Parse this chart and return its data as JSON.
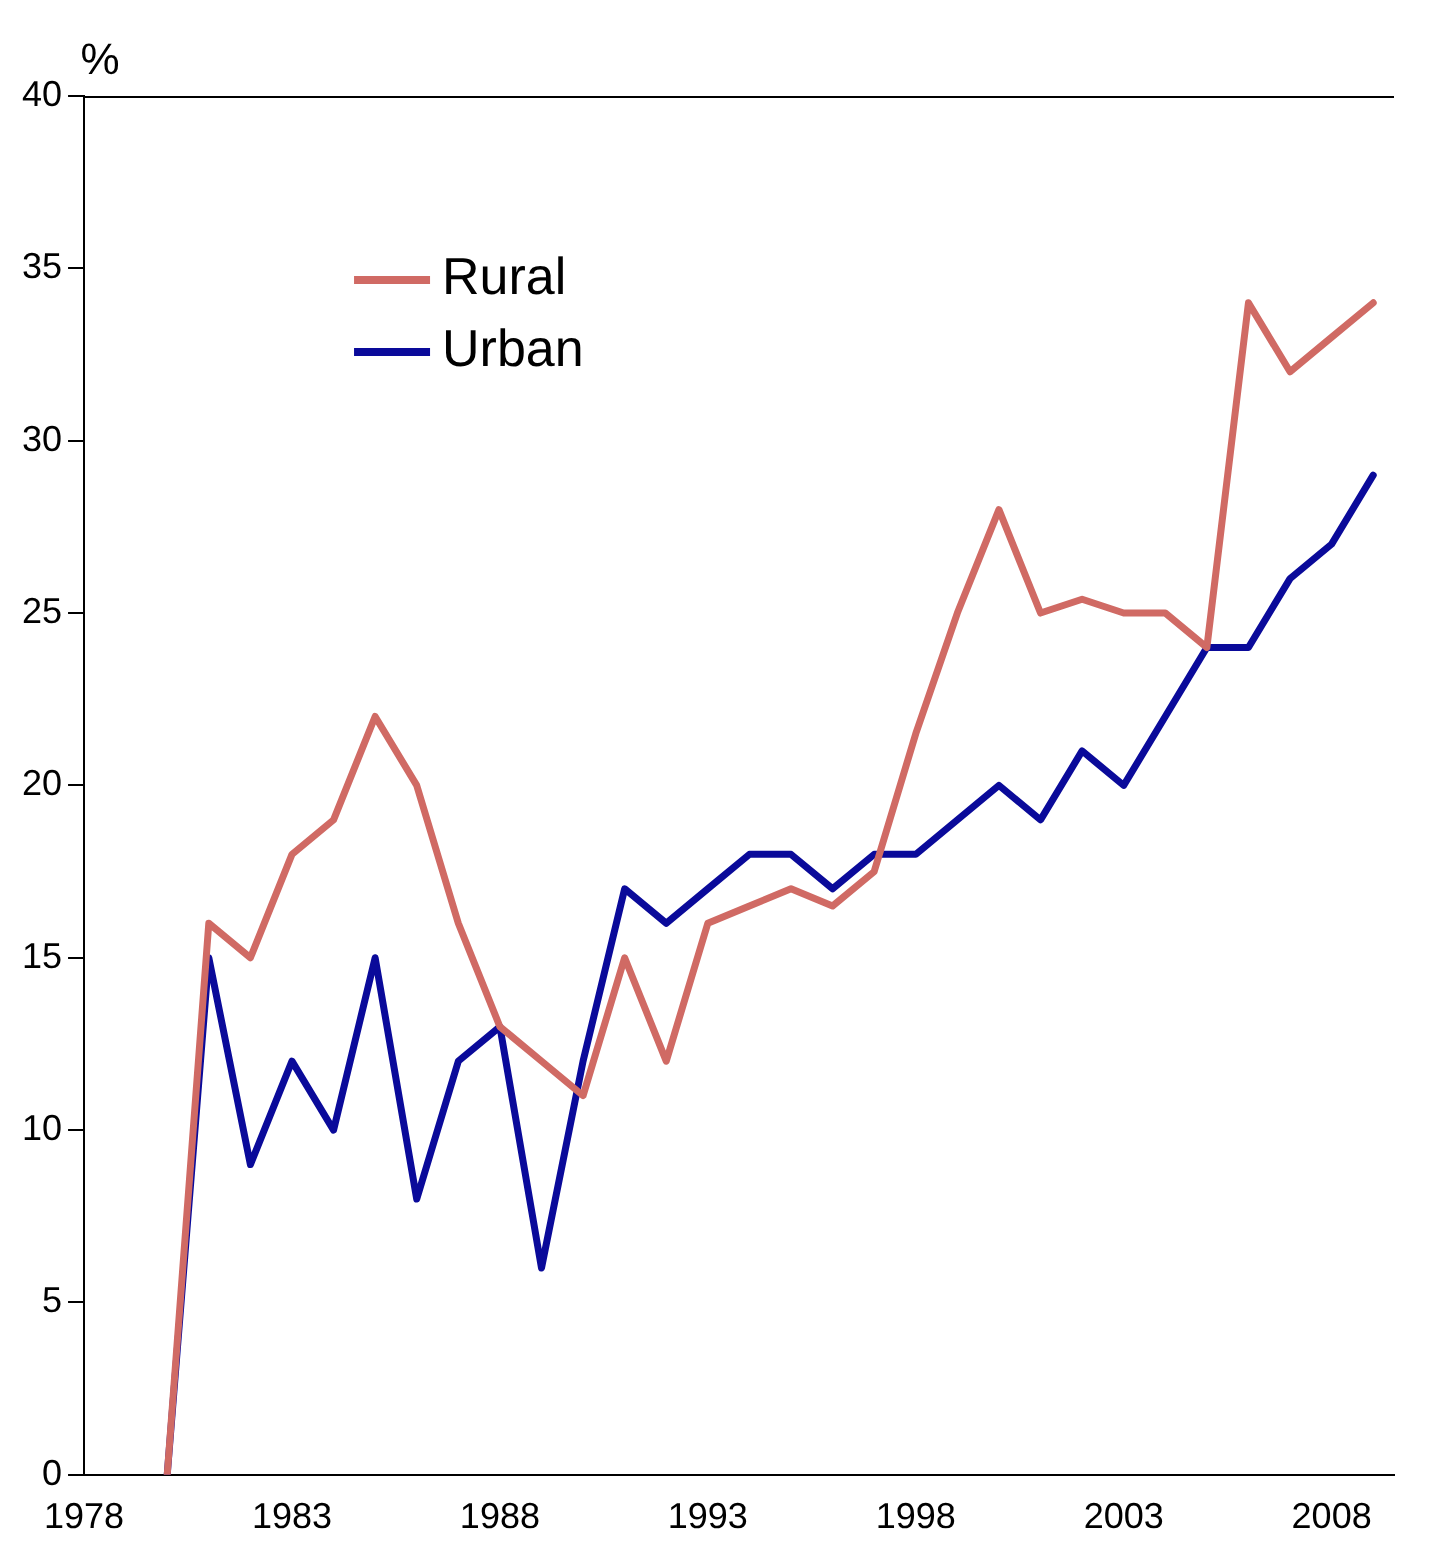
{
  "chart_data": {
    "type": "line",
    "ylabel": "%",
    "x": [
      1980,
      1981,
      1982,
      1983,
      1984,
      1985,
      1986,
      1987,
      1988,
      1989,
      1990,
      1991,
      1992,
      1993,
      1994,
      1995,
      1996,
      1997,
      1998,
      1999,
      2000,
      2001,
      2002,
      2003,
      2004,
      2005,
      2006,
      2007,
      2008,
      2009
    ],
    "series": [
      {
        "name": "Rural",
        "color": "#d06a64",
        "values": [
          0,
          16,
          15,
          18,
          19,
          22,
          20,
          16,
          13,
          12,
          11,
          15,
          12,
          16,
          16.5,
          17,
          16.5,
          17.5,
          21.5,
          25,
          28,
          25,
          25.4,
          25,
          25,
          24,
          34,
          32,
          33,
          34
        ]
      },
      {
        "name": "Urban",
        "color": "#0a0a9a",
        "values": [
          0,
          15,
          9,
          12,
          10,
          15,
          8,
          12,
          13,
          6,
          12,
          17,
          16,
          17,
          18,
          18,
          17,
          18,
          18,
          19,
          20,
          19,
          21,
          20,
          22,
          24,
          24,
          26,
          27,
          29
        ]
      }
    ],
    "xlim": [
      1978,
      2009.5
    ],
    "xticks": [
      1978,
      1983,
      1988,
      1993,
      1998,
      2003,
      2008
    ],
    "ylim": [
      0,
      40
    ],
    "yticks": [
      0,
      5,
      10,
      15,
      20,
      25,
      30,
      35,
      40
    ],
    "grid": false,
    "legend": "top left",
    "marker": "none",
    "line_style": "solid"
  }
}
